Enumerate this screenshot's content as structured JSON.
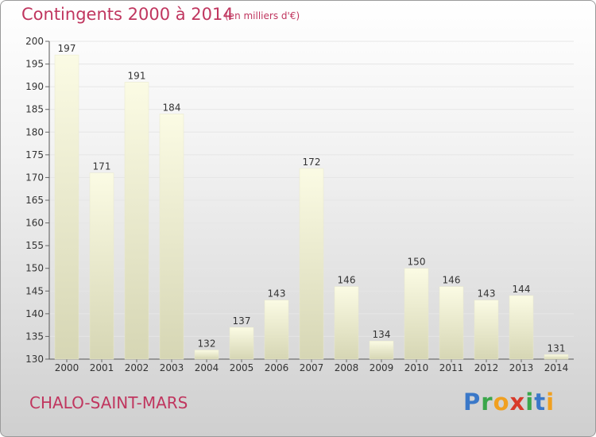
{
  "header": {
    "title": "Contingents 2000 à 2014",
    "subtitle": "(en milliers d'€)"
  },
  "footer": {
    "city": "CHALO-SAINT-MARS",
    "brand_letters": [
      {
        "ch": "P",
        "color": "#3a78c8"
      },
      {
        "ch": "r",
        "color": "#3aa64a"
      },
      {
        "ch": "o",
        "color": "#f0a020"
      },
      {
        "ch": "x",
        "color": "#d83a2a"
      },
      {
        "ch": "i",
        "color": "#3aa64a"
      },
      {
        "ch": "t",
        "color": "#3a78c8"
      },
      {
        "ch": "i",
        "color": "#f0a020"
      }
    ]
  },
  "chart_data": {
    "type": "bar",
    "title": "Contingents 2000 à 2014",
    "subtitle": "(en milliers d'€)",
    "categories": [
      "2000",
      "2001",
      "2002",
      "2003",
      "2004",
      "2005",
      "2006",
      "2007",
      "2008",
      "2009",
      "2010",
      "2011",
      "2012",
      "2013",
      "2014"
    ],
    "values": [
      197,
      171,
      191,
      184,
      132,
      137,
      143,
      172,
      146,
      134,
      150,
      146,
      143,
      144,
      131
    ],
    "ylim": [
      130,
      200
    ],
    "yticks": [
      130,
      135,
      140,
      145,
      150,
      155,
      160,
      165,
      170,
      175,
      180,
      185,
      190,
      195,
      200
    ],
    "grid": true,
    "bar_color": "#f2f2cc"
  }
}
